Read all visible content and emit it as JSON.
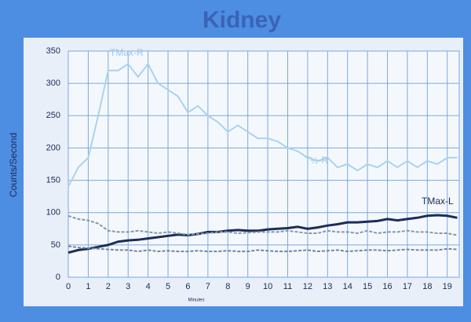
{
  "chart_data": {
    "type": "line",
    "title": "Kidney",
    "y_label": "Counts/Second",
    "x_label": "Minutes",
    "annotations": [
      "TMax-R",
      "T½-R",
      "TMax-L"
    ],
    "x": [
      0,
      0.5,
      1,
      1.5,
      2,
      2.5,
      3,
      3.5,
      4,
      4.5,
      5,
      5.5,
      6,
      6.5,
      7,
      7.5,
      8,
      8.5,
      9,
      9.5,
      10,
      10.5,
      11,
      11.5,
      12,
      12.5,
      13,
      13.5,
      14,
      14.5,
      15,
      15.5,
      16,
      16.5,
      17,
      17.5,
      18,
      18.5,
      19,
      19.5
    ],
    "series": [
      {
        "color": "#a9d3ee",
        "values": [
          140,
          170,
          185,
          250,
          320,
          320,
          330,
          310,
          330,
          300,
          290,
          280,
          255,
          265,
          250,
          240,
          225,
          235,
          225,
          215,
          215,
          210,
          200,
          195,
          185,
          180,
          185,
          170,
          175,
          165,
          175,
          170,
          180,
          170,
          180,
          170,
          180,
          175,
          185,
          185
        ]
      },
      {
        "color": "#1c2d5a",
        "values": [
          38,
          42,
          44,
          47,
          50,
          55,
          57,
          58,
          60,
          62,
          64,
          66,
          65,
          67,
          70,
          70,
          72,
          73,
          72,
          72,
          74,
          75,
          76,
          78,
          75,
          77,
          80,
          82,
          85,
          85,
          86,
          87,
          90,
          88,
          90,
          92,
          95,
          96,
          95,
          92
        ]
      },
      {
        "color": "#8597ab",
        "values": [
          95,
          90,
          88,
          83,
          72,
          70,
          70,
          72,
          70,
          68,
          70,
          68,
          66,
          67,
          68,
          70,
          70,
          68,
          69,
          70,
          70,
          70,
          72,
          70,
          68,
          68,
          72,
          70,
          70,
          68,
          72,
          68,
          70,
          70,
          72,
          70,
          70,
          68,
          68,
          65
        ]
      },
      {
        "color": "#7286a0",
        "values": [
          48,
          46,
          45,
          44,
          43,
          42,
          42,
          40,
          42,
          40,
          41,
          40,
          40,
          41,
          40,
          40,
          41,
          40,
          40,
          42,
          41,
          40,
          40,
          41,
          42,
          40,
          41,
          42,
          40,
          41,
          42,
          42,
          41,
          42,
          43,
          42,
          42,
          42,
          44,
          43
        ]
      }
    ],
    "xlim": [
      0,
      19.6
    ],
    "ylim": [
      0,
      350
    ],
    "xticks": [
      0,
      1,
      2,
      3,
      4,
      5,
      6,
      7,
      8,
      9,
      10,
      11,
      12,
      13,
      14,
      15,
      16,
      17,
      18,
      19
    ],
    "yticks": [
      0,
      50,
      100,
      150,
      200,
      250,
      300,
      350
    ],
    "grid": true
  }
}
